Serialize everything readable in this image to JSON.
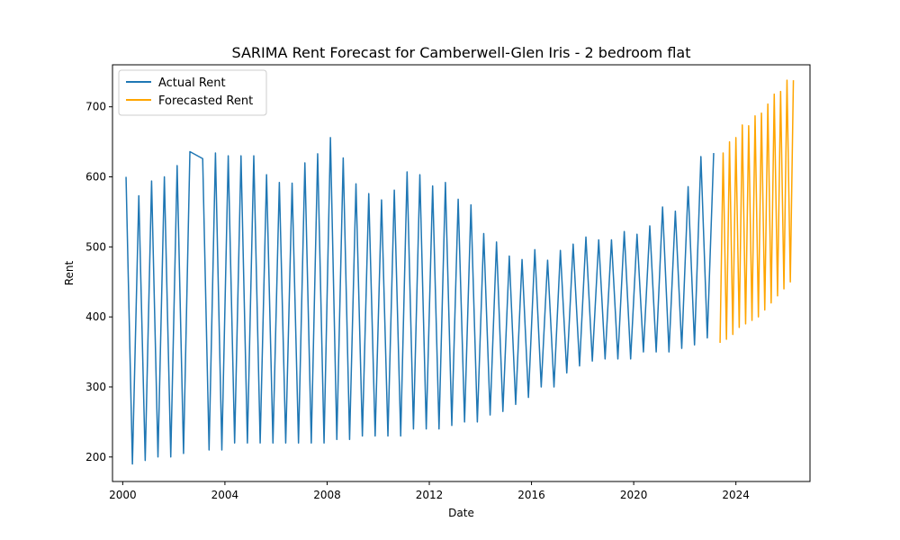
{
  "chart_data": {
    "type": "line",
    "title": "SARIMA Rent Forecast for Camberwell-Glen Iris - 2 bedroom flat",
    "xlabel": "Date",
    "ylabel": "Rent",
    "x_unit": "year (decimal)",
    "xlim": [
      1999.6,
      2026.9
    ],
    "ylim": [
      165,
      760
    ],
    "x_ticks": [
      2000,
      2004,
      2008,
      2012,
      2016,
      2020,
      2024
    ],
    "y_ticks": [
      200,
      300,
      400,
      500,
      600,
      700
    ],
    "grid": false,
    "legend_position": "top-left",
    "series": [
      {
        "name": "Actual Rent",
        "color": "#1f77b4",
        "x": [
          2000.13,
          2000.38,
          2000.63,
          2000.88,
          2001.13,
          2001.38,
          2001.63,
          2001.88,
          2002.13,
          2002.38,
          2002.63,
          2003.13,
          2003.38,
          2003.63,
          2003.88,
          2004.13,
          2004.38,
          2004.63,
          2004.88,
          2005.13,
          2005.38,
          2005.63,
          2005.88,
          2006.13,
          2006.38,
          2006.63,
          2006.88,
          2007.13,
          2007.38,
          2007.63,
          2007.88,
          2008.13,
          2008.38,
          2008.63,
          2008.88,
          2009.13,
          2009.38,
          2009.63,
          2009.88,
          2010.13,
          2010.38,
          2010.63,
          2010.88,
          2011.13,
          2011.38,
          2011.63,
          2011.88,
          2012.13,
          2012.38,
          2012.63,
          2012.88,
          2013.13,
          2013.38,
          2013.63,
          2013.88,
          2014.13,
          2014.38,
          2014.63,
          2014.88,
          2015.13,
          2015.38,
          2015.63,
          2015.88,
          2016.13,
          2016.38,
          2016.63,
          2016.88,
          2017.13,
          2017.38,
          2017.63,
          2017.88,
          2018.13,
          2018.38,
          2018.63,
          2018.88,
          2019.13,
          2019.38,
          2019.63,
          2019.88,
          2020.13,
          2020.38,
          2020.63,
          2020.88,
          2021.13,
          2021.38,
          2021.63,
          2021.88,
          2022.13,
          2022.38,
          2022.63,
          2022.88,
          2023.13
        ],
        "y": [
          600,
          190,
          573,
          195,
          594,
          200,
          600,
          200,
          616,
          205,
          636,
          626,
          210,
          634,
          210,
          630,
          220,
          630,
          220,
          630,
          220,
          603,
          220,
          592,
          220,
          591,
          220,
          620,
          220,
          633,
          220,
          656,
          225,
          627,
          225,
          590,
          230,
          576,
          230,
          567,
          230,
          581,
          230,
          607,
          240,
          603,
          240,
          587,
          240,
          592,
          245,
          568,
          250,
          560,
          250,
          519,
          260,
          507,
          265,
          487,
          275,
          482,
          285,
          496,
          300,
          481,
          300,
          495,
          320,
          504,
          330,
          514,
          337,
          510,
          340,
          510,
          340,
          522,
          340,
          518,
          350,
          530,
          350,
          557,
          350,
          551,
          355,
          586,
          360,
          629,
          370,
          634
        ]
      },
      {
        "name": "Forecasted Rent",
        "color": "#ffa500",
        "x": [
          2023.38,
          2023.5,
          2023.63,
          2023.75,
          2023.88,
          2024.0,
          2024.13,
          2024.25,
          2024.38,
          2024.5,
          2024.63,
          2024.75,
          2024.88,
          2025.0,
          2025.13,
          2025.25,
          2025.38,
          2025.5,
          2025.63,
          2025.75,
          2025.88,
          2026.0,
          2026.13,
          2026.25
        ],
        "y": [
          363,
          634,
          368,
          650,
          375,
          656,
          385,
          674,
          390,
          673,
          395,
          687,
          400,
          691,
          410,
          704,
          420,
          718,
          430,
          722,
          440,
          738,
          450,
          738
        ]
      }
    ]
  }
}
